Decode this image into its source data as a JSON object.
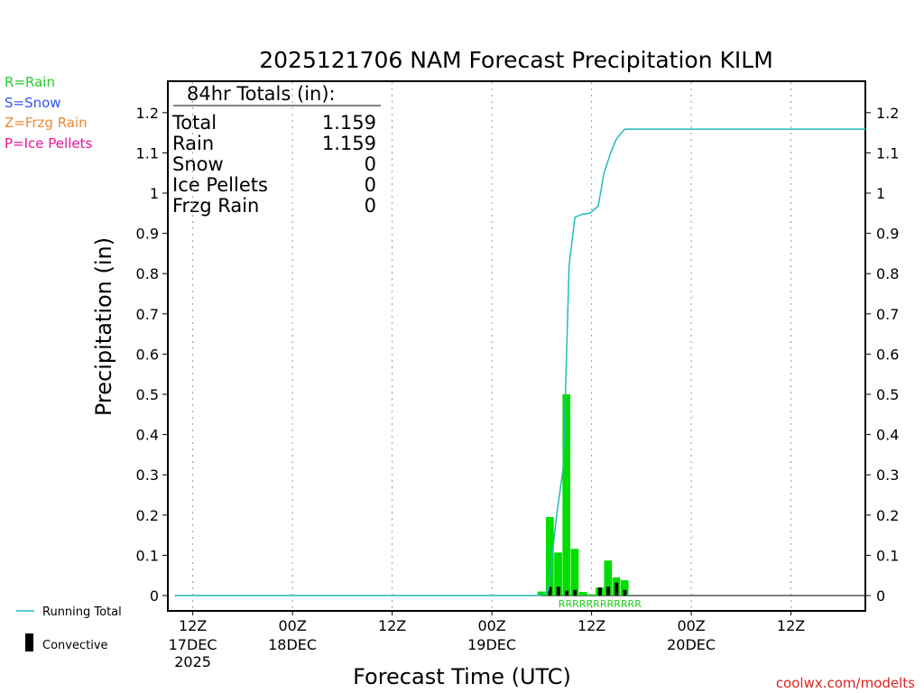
{
  "chart_data": {
    "type": "bar",
    "title": "2025121706 NAM Forecast Precipitation KILM",
    "xlabel": "Forecast Time (UTC)",
    "ylabel": "Precipitation (in)",
    "ylim": [
      0,
      1.2675
    ],
    "y_ticks": [
      "0",
      "0.1",
      "0.2",
      "0.3",
      "0.4",
      "0.5",
      "0.6",
      "0.7",
      "0.8",
      "0.9",
      "1",
      "1.1",
      "1.2"
    ],
    "x_range_hours": [
      3,
      87
    ],
    "x_ticks": [
      {
        "hour": 6,
        "label": "12Z",
        "day": "17DEC",
        "year": "2025"
      },
      {
        "hour": 18,
        "label": "00Z",
        "day": "18DEC",
        "year": ""
      },
      {
        "hour": 30,
        "label": "12Z",
        "day": "",
        "year": ""
      },
      {
        "hour": 42,
        "label": "00Z",
        "day": "19DEC",
        "year": ""
      },
      {
        "hour": 54,
        "label": "12Z",
        "day": "",
        "year": ""
      },
      {
        "hour": 66,
        "label": "00Z",
        "day": "20DEC",
        "year": ""
      },
      {
        "hour": 78,
        "label": "12Z",
        "day": "",
        "year": ""
      }
    ],
    "legend": [
      {
        "text": "R=Rain",
        "color": "#22cc22"
      },
      {
        "text": "S=Snow",
        "color": "#3355ee"
      },
      {
        "text": "Z=Frzg Rain",
        "color": "#ee8833"
      },
      {
        "text": "P=Ice Pellets",
        "color": "#ee1199"
      }
    ],
    "series_legend": {
      "running_total": "Running Total",
      "convective": "Convective"
    },
    "series": [
      {
        "name": "Rain (3-hourly)",
        "color": "#00dd00",
        "x_hours": [
          48,
          49,
          50,
          51,
          52,
          53,
          54,
          55,
          56,
          57,
          58
        ],
        "values": [
          0.01,
          0.195,
          0.107,
          0.5,
          0.116,
          0.009,
          0.003,
          0.02,
          0.087,
          0.045,
          0.038
        ]
      },
      {
        "name": "Convective",
        "color": "#000000",
        "x_hours": [
          49,
          50,
          51,
          52,
          55,
          56,
          57,
          58
        ],
        "values": [
          0.022,
          0.022,
          0.012,
          0.014,
          0.02,
          0.022,
          0.032,
          0.014
        ]
      },
      {
        "name": "Running Total",
        "color": "#22bbbb",
        "x_hours": [
          4,
          47.8,
          48.8,
          49.8,
          50.6,
          51.3,
          52,
          52.8,
          53.8,
          54.8,
          55.5,
          56.3,
          57,
          58,
          87
        ],
        "values": [
          0,
          0.0,
          0.012,
          0.2,
          0.32,
          0.82,
          0.94,
          0.947,
          0.95,
          0.968,
          1.05,
          1.1,
          1.135,
          1.159,
          1.159
        ]
      }
    ],
    "rain_codes": {
      "text": "RRRRRRRRRRRR",
      "start_hour": 50,
      "end_hour": 60
    },
    "annotation": {
      "heading": "84hr Totals (in):",
      "rows": [
        {
          "label": "Total",
          "value": "1.159"
        },
        {
          "label": "Rain",
          "value": "1.159"
        },
        {
          "label": "Snow",
          "value": "0"
        },
        {
          "label": "Ice Pellets",
          "value": "0"
        },
        {
          "label": "Frzg Rain",
          "value": "0"
        }
      ]
    },
    "credit": "coolwx.com/modelts"
  }
}
